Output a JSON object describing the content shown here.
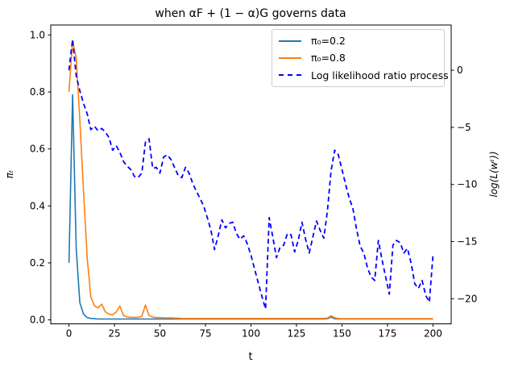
{
  "title": "when αF + (1 − α)G governs data",
  "chart_data": {
    "type": "line",
    "title": "when αF + (1 − α)G governs data",
    "grid": false,
    "x_axis": {
      "label": "t",
      "lim": [
        -10,
        210
      ],
      "ticks": [
        0,
        25,
        50,
        75,
        100,
        125,
        150,
        175,
        200
      ]
    },
    "y_axis_left": {
      "label": "πₜ",
      "lim": [
        -0.014,
        1.035
      ],
      "ticks": [
        0.0,
        0.2,
        0.4,
        0.6,
        0.8,
        1.0
      ],
      "tick_labels": [
        "0.0",
        "0.2",
        "0.4",
        "0.6",
        "0.8",
        "1.0"
      ]
    },
    "y_axis_right": {
      "label": "log(L(wᵗ))",
      "lim": [
        -22.2,
        3.96
      ],
      "ticks": [
        0,
        -5,
        -10,
        -15,
        -20
      ],
      "tick_labels": [
        "0",
        "−5",
        "−10",
        "−15",
        "−20"
      ]
    },
    "legend": {
      "position": "upper right",
      "entries": [
        {
          "label": "π₀=0.2",
          "color": "#1f77b4",
          "style": "solid"
        },
        {
          "label": "π₀=0.8",
          "color": "#ff7f0e",
          "style": "solid"
        },
        {
          "label": "Log likelihood ratio process",
          "color": "#0000ff",
          "style": "dashed"
        }
      ]
    },
    "t": [
      0,
      2,
      4,
      6,
      8,
      10,
      12,
      14,
      16,
      18,
      20,
      22,
      24,
      26,
      28,
      30,
      32,
      34,
      36,
      38,
      40,
      42,
      44,
      46,
      48,
      50,
      52,
      54,
      56,
      58,
      60,
      62,
      64,
      66,
      68,
      70,
      72,
      74,
      76,
      78,
      80,
      82,
      84,
      86,
      88,
      90,
      92,
      94,
      96,
      98,
      100,
      102,
      104,
      106,
      108,
      110,
      112,
      114,
      116,
      118,
      120,
      122,
      124,
      126,
      128,
      130,
      132,
      134,
      136,
      138,
      140,
      142,
      144,
      146,
      148,
      150,
      152,
      154,
      156,
      158,
      160,
      162,
      164,
      166,
      168,
      170,
      172,
      174,
      176,
      178,
      180,
      182,
      184,
      186,
      188,
      190,
      192,
      194,
      196,
      198,
      200
    ],
    "series": [
      {
        "name": "π₀=0.2",
        "axis": "left",
        "color": "#1f77b4",
        "style": "solid",
        "values": [
          0.2,
          0.79,
          0.25,
          0.06,
          0.02,
          0.008,
          0.005,
          0.004,
          0.003,
          0.003,
          0.003,
          0.003,
          0.003,
          0.003,
          0.003,
          0.003,
          0.003,
          0.003,
          0.003,
          0.003,
          0.003,
          0.003,
          0.003,
          0.003,
          0.003,
          0.003,
          0.003,
          0.003,
          0.003,
          0.003,
          0.003,
          0.003,
          0.003,
          0.003,
          0.003,
          0.003,
          0.003,
          0.003,
          0.003,
          0.003,
          0.003,
          0.003,
          0.003,
          0.003,
          0.003,
          0.003,
          0.003,
          0.003,
          0.003,
          0.003,
          0.003,
          0.003,
          0.003,
          0.003,
          0.003,
          0.003,
          0.003,
          0.003,
          0.003,
          0.003,
          0.003,
          0.003,
          0.003,
          0.003,
          0.003,
          0.003,
          0.003,
          0.003,
          0.003,
          0.003,
          0.003,
          0.004,
          0.01,
          0.004,
          0.003,
          0.003,
          0.003,
          0.003,
          0.003,
          0.003,
          0.003,
          0.003,
          0.003,
          0.003,
          0.003,
          0.003,
          0.003,
          0.003,
          0.003,
          0.003,
          0.003,
          0.003,
          0.003,
          0.003,
          0.003,
          0.003,
          0.003,
          0.003,
          0.003,
          0.003,
          0.003
        ]
      },
      {
        "name": "π₀=0.8",
        "axis": "left",
        "color": "#ff7f0e",
        "style": "solid",
        "values": [
          0.8,
          0.98,
          0.92,
          0.7,
          0.45,
          0.22,
          0.08,
          0.05,
          0.042,
          0.055,
          0.028,
          0.02,
          0.018,
          0.028,
          0.048,
          0.015,
          0.01,
          0.009,
          0.009,
          0.009,
          0.012,
          0.052,
          0.015,
          0.01,
          0.008,
          0.008,
          0.007,
          0.007,
          0.007,
          0.006,
          0.006,
          0.005,
          0.005,
          0.005,
          0.005,
          0.005,
          0.005,
          0.005,
          0.005,
          0.005,
          0.005,
          0.005,
          0.005,
          0.005,
          0.005,
          0.005,
          0.005,
          0.005,
          0.005,
          0.005,
          0.005,
          0.005,
          0.005,
          0.005,
          0.005,
          0.005,
          0.005,
          0.005,
          0.005,
          0.005,
          0.005,
          0.005,
          0.005,
          0.005,
          0.005,
          0.005,
          0.005,
          0.005,
          0.005,
          0.005,
          0.005,
          0.006,
          0.014,
          0.007,
          0.005,
          0.004,
          0.004,
          0.004,
          0.004,
          0.004,
          0.004,
          0.004,
          0.004,
          0.004,
          0.004,
          0.004,
          0.004,
          0.004,
          0.004,
          0.004,
          0.004,
          0.004,
          0.004,
          0.004,
          0.004,
          0.004,
          0.004,
          0.004,
          0.004,
          0.004,
          0.004
        ]
      },
      {
        "name": "Log likelihood ratio process",
        "axis": "right",
        "color": "#0000ff",
        "style": "dashed",
        "values": [
          0.0,
          2.7,
          -0.5,
          -1.8,
          -2.9,
          -3.8,
          -5.2,
          -4.9,
          -5.3,
          -5.1,
          -5.4,
          -5.9,
          -7.0,
          -6.6,
          -7.2,
          -8.0,
          -8.4,
          -8.7,
          -9.3,
          -9.4,
          -9.0,
          -6.3,
          -6.0,
          -8.6,
          -8.5,
          -9.0,
          -7.6,
          -7.4,
          -7.8,
          -8.5,
          -9.2,
          -9.4,
          -8.5,
          -9.0,
          -9.9,
          -10.6,
          -11.2,
          -11.9,
          -12.9,
          -14.0,
          -15.7,
          -14.5,
          -13.1,
          -13.8,
          -13.4,
          -13.3,
          -14.3,
          -14.8,
          -14.5,
          -15.2,
          -16.2,
          -17.4,
          -18.6,
          -19.8,
          -20.9,
          -12.9,
          -14.6,
          -16.4,
          -15.5,
          -15.3,
          -14.3,
          -14.4,
          -15.9,
          -14.9,
          -13.3,
          -14.8,
          -16.0,
          -14.6,
          -13.2,
          -14.0,
          -14.7,
          -12.3,
          -8.8,
          -7.0,
          -7.4,
          -8.7,
          -10.0,
          -11.2,
          -12.1,
          -13.9,
          -15.4,
          -16.0,
          -17.3,
          -18.1,
          -18.4,
          -14.9,
          -16.6,
          -18.1,
          -19.6,
          -15.3,
          -14.9,
          -15.1,
          -16.0,
          -15.6,
          -16.9,
          -18.7,
          -19.1,
          -18.4,
          -19.7,
          -20.3,
          -16.2
        ]
      }
    ]
  }
}
